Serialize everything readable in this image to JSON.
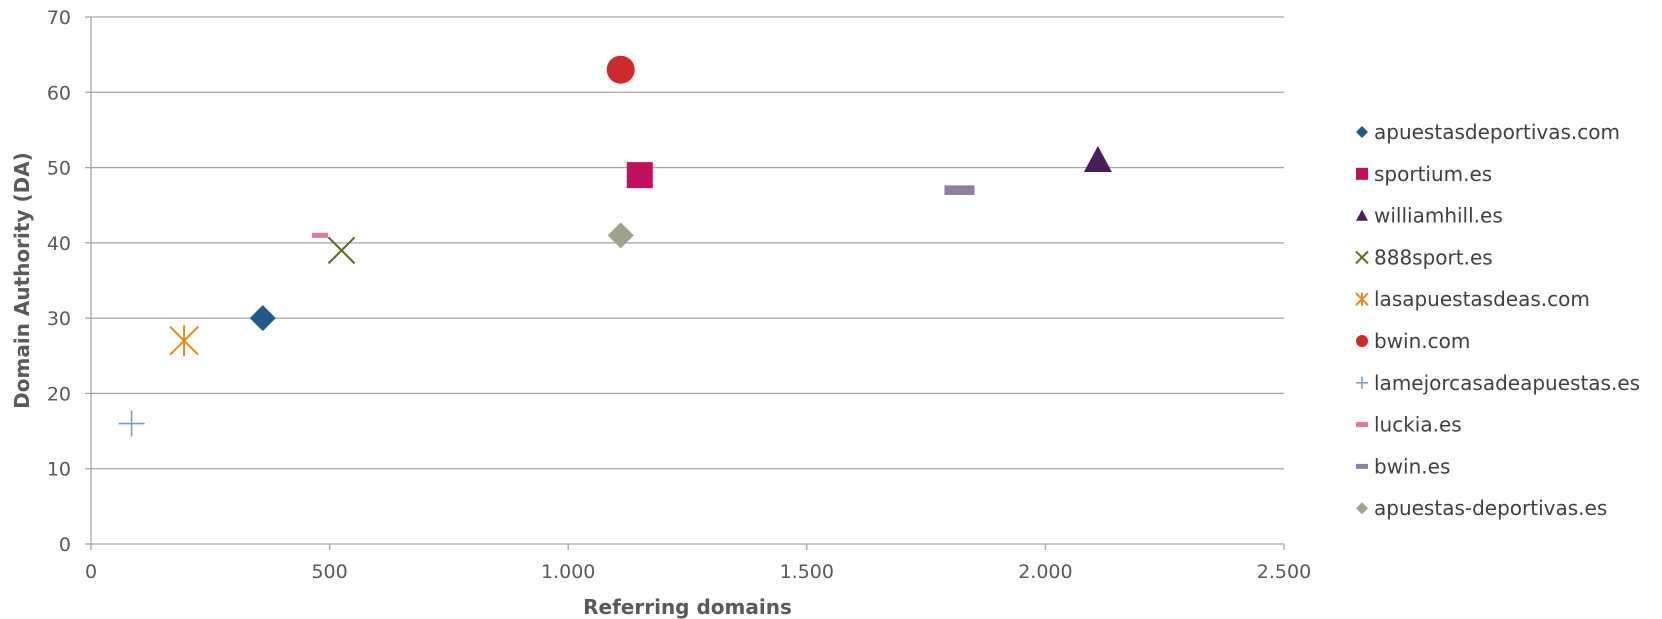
{
  "chart_data": {
    "type": "scatter",
    "title": "",
    "xlabel": "Referring domains",
    "ylabel": "Domain Authority (DA)",
    "xlim": [
      0,
      2500
    ],
    "ylim": [
      0,
      70
    ],
    "x_ticks": [
      0,
      500,
      1000,
      1500,
      2000,
      2500
    ],
    "x_tick_labels": [
      "0",
      "500",
      "1.000",
      "1.500",
      "2.000",
      "2.500"
    ],
    "y_ticks": [
      0,
      10,
      20,
      30,
      40,
      50,
      60,
      70
    ],
    "y_tick_labels": [
      "0",
      "10",
      "20",
      "30",
      "40",
      "50",
      "60",
      "70"
    ],
    "grid": "horizontal",
    "legend_position": "right",
    "series": [
      {
        "name": "apuestasdeportivas.com",
        "x": 360,
        "y": 30,
        "marker": "diamond",
        "color": "#1F5A8B"
      },
      {
        "name": "sportium.es",
        "x": 1150,
        "y": 49,
        "marker": "square",
        "color": "#C0105E"
      },
      {
        "name": "williamhill.es",
        "x": 2110,
        "y": 51,
        "marker": "triangle",
        "color": "#4B1D5C"
      },
      {
        "name": "888sport.es",
        "x": 525,
        "y": 39,
        "marker": "x",
        "color": "#5A6B1E"
      },
      {
        "name": "lasapuestasdeas.com",
        "x": 195,
        "y": 27,
        "marker": "star",
        "color": "#E08A1E"
      },
      {
        "name": "bwin.com",
        "x": 1110,
        "y": 63,
        "marker": "circle",
        "color": "#CC2A2A"
      },
      {
        "name": "lamejorcasadeapuestas.es",
        "x": 85,
        "y": 16,
        "marker": "plus",
        "color": "#7A9CC6"
      },
      {
        "name": "luckia.es",
        "x": 480,
        "y": 41,
        "marker": "dash",
        "color": "#E07A95"
      },
      {
        "name": "bwin.es",
        "x": 1820,
        "y": 47,
        "marker": "dash",
        "color": "#8F7FA0"
      },
      {
        "name": "apuestas-deportivas.es",
        "x": 1110,
        "y": 41,
        "marker": "diamond",
        "color": "#9CA38A"
      }
    ]
  }
}
